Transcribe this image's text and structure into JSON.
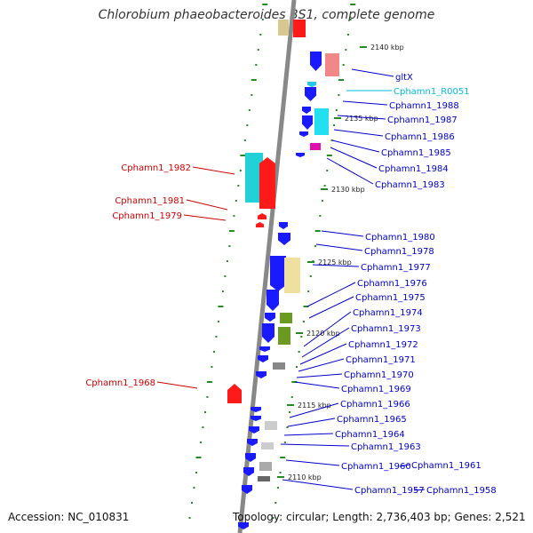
{
  "title": "Chlorobium phaeobacteroides BS1, complete genome",
  "accession": "Accession: NC_010831",
  "topology": "Topology: circular; Length: 2,736,403 bp; Genes: 2,521",
  "colors": {
    "forward_label": "#cc0000",
    "reverse_label": "#0000cc",
    "rna_label": "#00bbdd",
    "backbone": "#888888",
    "tick": "#228B22"
  },
  "kbp_marks": [
    "2140 kbp",
    "2135 kbp",
    "2130 kbp",
    "2125 kbp",
    "2120 kbp",
    "2115 kbp",
    "2110 kbp"
  ],
  "left_labels": [
    "Cphamn1_1982",
    "Cphamn1_1981",
    "Cphamn1_1979",
    "Cphamn1_1968"
  ],
  "right_labels": [
    "gltX",
    "Cphamn1_R0051",
    "Cphamn1_1988",
    "Cphamn1_1987",
    "Cphamn1_1986",
    "Cphamn1_1985",
    "Cphamn1_1984",
    "Cphamn1_1983",
    "Cphamn1_1980",
    "Cphamn1_1978",
    "Cphamn1_1977",
    "Cphamn1_1976",
    "Cphamn1_1975",
    "Cphamn1_1974",
    "Cphamn1_1973",
    "Cphamn1_1972",
    "Cphamn1_1971",
    "Cphamn1_1970",
    "Cphamn1_1969",
    "Cphamn1_1966",
    "Cphamn1_1965",
    "Cphamn1_1964",
    "Cphamn1_1963",
    "Cphamn1_1960",
    "Cphamn1_1961",
    "Cphamn1_1957",
    "Cphamn1_1958"
  ]
}
